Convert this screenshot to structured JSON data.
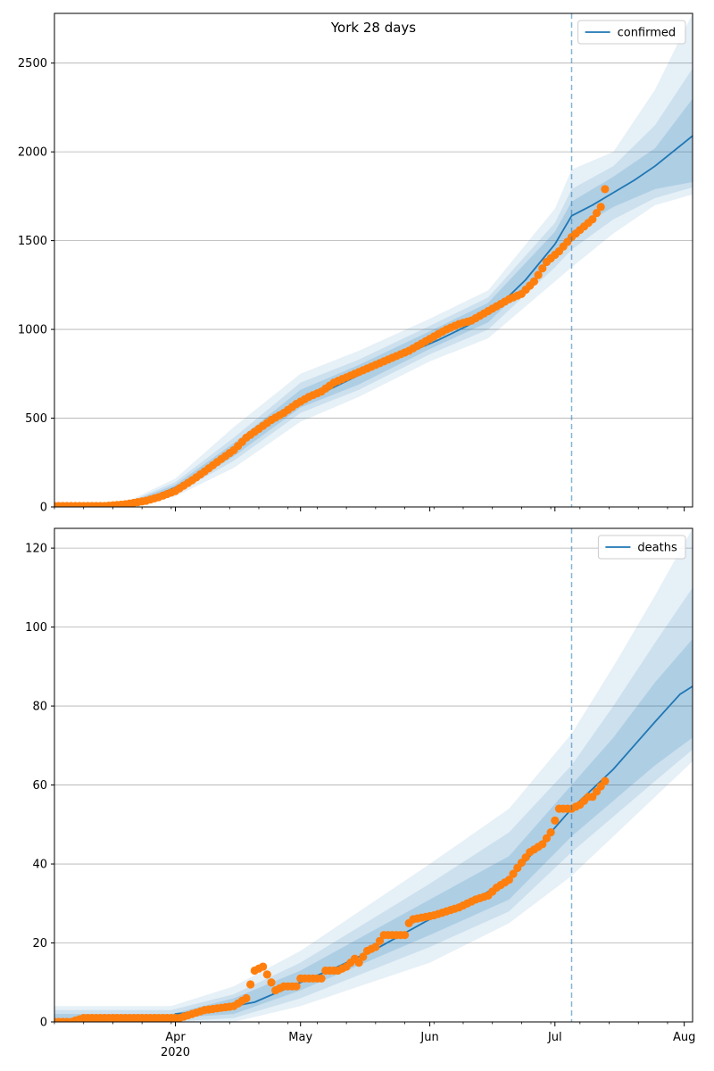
{
  "chart_data": [
    {
      "type": "line",
      "title": "York 28 days",
      "legend": {
        "entries": [
          "confirmed"
        ],
        "placement": "top-right"
      },
      "xlabel": "",
      "ylabel": "",
      "grid": "horizontal",
      "xlim": [
        "2020-03-03",
        "2020-08-03"
      ],
      "ylim": [
        0,
        2780
      ],
      "yticks": [
        0,
        500,
        1000,
        1500,
        2000,
        2500
      ],
      "xticks": [
        {
          "date": "2020-04-01",
          "label": "Apr",
          "sublabel": "2020"
        },
        {
          "date": "2020-05-01",
          "label": "May",
          "sublabel": ""
        },
        {
          "date": "2020-06-01",
          "label": "Jun",
          "sublabel": ""
        },
        {
          "date": "2020-07-01",
          "label": "Jul",
          "sublabel": ""
        },
        {
          "date": "2020-08-01",
          "label": "Aug",
          "sublabel": ""
        }
      ],
      "forecast_start": "2020-07-05",
      "colors": {
        "model": "#1f77b4",
        "observed": "#ff7f0e",
        "band": "#1f77b4"
      },
      "series": [
        {
          "name": "confirmed",
          "kind": "model-median",
          "points": [
            [
              "2020-03-03",
              5
            ],
            [
              "2020-03-20",
              15
            ],
            [
              "2020-03-27",
              60
            ],
            [
              "2020-04-01",
              110
            ],
            [
              "2020-04-08",
              200
            ],
            [
              "2020-04-15",
              320
            ],
            [
              "2020-04-22",
              450
            ],
            [
              "2020-04-29",
              560
            ],
            [
              "2020-05-06",
              640
            ],
            [
              "2020-05-13",
              720
            ],
            [
              "2020-05-20",
              800
            ],
            [
              "2020-05-27",
              870
            ],
            [
              "2020-06-03",
              940
            ],
            [
              "2020-06-10",
              1020
            ],
            [
              "2020-06-17",
              1120
            ],
            [
              "2020-06-24",
              1280
            ],
            [
              "2020-07-01",
              1480
            ],
            [
              "2020-07-05",
              1640
            ],
            [
              "2020-07-10",
              1700
            ],
            [
              "2020-07-15",
              1770
            ],
            [
              "2020-07-20",
              1840
            ],
            [
              "2020-07-25",
              1920
            ],
            [
              "2020-08-03",
              2090
            ]
          ]
        },
        {
          "kind": "observed",
          "points": [
            [
              "2020-03-03",
              5
            ],
            [
              "2020-03-15",
              5
            ],
            [
              "2020-03-20",
              15
            ],
            [
              "2020-03-25",
              35
            ],
            [
              "2020-03-28",
              55
            ],
            [
              "2020-04-01",
              90
            ],
            [
              "2020-04-05",
              150
            ],
            [
              "2020-04-08",
              200
            ],
            [
              "2020-04-12",
              270
            ],
            [
              "2020-04-15",
              320
            ],
            [
              "2020-04-18",
              390
            ],
            [
              "2020-04-21",
              440
            ],
            [
              "2020-04-24",
              490
            ],
            [
              "2020-04-27",
              530
            ],
            [
              "2020-04-30",
              580
            ],
            [
              "2020-05-03",
              620
            ],
            [
              "2020-05-06",
              650
            ],
            [
              "2020-05-09",
              700
            ],
            [
              "2020-05-12",
              730
            ],
            [
              "2020-05-15",
              760
            ],
            [
              "2020-05-18",
              790
            ],
            [
              "2020-05-21",
              820
            ],
            [
              "2020-05-24",
              850
            ],
            [
              "2020-05-27",
              880
            ],
            [
              "2020-05-30",
              920
            ],
            [
              "2020-06-02",
              960
            ],
            [
              "2020-06-05",
              1000
            ],
            [
              "2020-06-08",
              1030
            ],
            [
              "2020-06-11",
              1050
            ],
            [
              "2020-06-14",
              1090
            ],
            [
              "2020-06-17",
              1130
            ],
            [
              "2020-06-20",
              1170
            ],
            [
              "2020-06-23",
              1200
            ],
            [
              "2020-06-26",
              1270
            ],
            [
              "2020-06-29",
              1380
            ],
            [
              "2020-07-02",
              1440
            ],
            [
              "2020-07-05",
              1520
            ],
            [
              "2020-07-08",
              1580
            ],
            [
              "2020-07-10",
              1620
            ],
            [
              "2020-07-12",
              1690
            ],
            [
              "2020-07-13",
              1790
            ]
          ]
        }
      ],
      "bands": [
        {
          "level": "outer",
          "points": [
            [
              "2020-03-03",
              0,
              10
            ],
            [
              "2020-03-20",
              5,
              25
            ],
            [
              "2020-04-01",
              60,
              160
            ],
            [
              "2020-04-15",
              220,
              450
            ],
            [
              "2020-05-01",
              480,
              750
            ],
            [
              "2020-05-15",
              620,
              880
            ],
            [
              "2020-06-01",
              820,
              1060
            ],
            [
              "2020-06-15",
              950,
              1220
            ],
            [
              "2020-07-01",
              1270,
              1680
            ],
            [
              "2020-07-05",
              1350,
              1900
            ],
            [
              "2020-07-15",
              1540,
              2000
            ],
            [
              "2020-07-25",
              1700,
              2350
            ],
            [
              "2020-08-03",
              1760,
              2780
            ]
          ]
        },
        {
          "level": "middle",
          "points": [
            [
              "2020-03-03",
              2,
              8
            ],
            [
              "2020-03-20",
              8,
              20
            ],
            [
              "2020-04-01",
              75,
              140
            ],
            [
              "2020-04-15",
              260,
              390
            ],
            [
              "2020-05-01",
              530,
              700
            ],
            [
              "2020-05-15",
              660,
              830
            ],
            [
              "2020-06-01",
              860,
              1020
            ],
            [
              "2020-06-15",
              1000,
              1180
            ],
            [
              "2020-07-01",
              1350,
              1600
            ],
            [
              "2020-07-05",
              1450,
              1790
            ],
            [
              "2020-07-15",
              1620,
              1920
            ],
            [
              "2020-07-25",
              1740,
              2150
            ],
            [
              "2020-08-03",
              1800,
              2470
            ]
          ]
        },
        {
          "level": "inner",
          "points": [
            [
              "2020-03-03",
              3,
              7
            ],
            [
              "2020-03-20",
              10,
              18
            ],
            [
              "2020-04-01",
              85,
              125
            ],
            [
              "2020-04-15",
              285,
              360
            ],
            [
              "2020-05-01",
              560,
              660
            ],
            [
              "2020-05-15",
              690,
              800
            ],
            [
              "2020-06-01",
              890,
              990
            ],
            [
              "2020-06-15",
              1040,
              1150
            ],
            [
              "2020-07-01",
              1400,
              1550
            ],
            [
              "2020-07-05",
              1550,
              1720
            ],
            [
              "2020-07-15",
              1690,
              1860
            ],
            [
              "2020-07-25",
              1790,
              2020
            ],
            [
              "2020-08-03",
              1830,
              2300
            ]
          ]
        }
      ]
    },
    {
      "type": "line",
      "title": "",
      "legend": {
        "entries": [
          "deaths"
        ],
        "placement": "top-right"
      },
      "xlabel": "",
      "ylabel": "",
      "grid": "horizontal",
      "xlim": [
        "2020-03-03",
        "2020-08-03"
      ],
      "ylim": [
        0,
        125
      ],
      "yticks": [
        0,
        20,
        40,
        60,
        80,
        100,
        120
      ],
      "xticks": [
        {
          "date": "2020-04-01",
          "label": "Apr",
          "sublabel": "2020"
        },
        {
          "date": "2020-05-01",
          "label": "May",
          "sublabel": ""
        },
        {
          "date": "2020-06-01",
          "label": "Jun",
          "sublabel": ""
        },
        {
          "date": "2020-07-01",
          "label": "Jul",
          "sublabel": ""
        },
        {
          "date": "2020-08-01",
          "label": "Aug",
          "sublabel": ""
        }
      ],
      "forecast_start": "2020-07-05",
      "colors": {
        "model": "#1f77b4",
        "observed": "#ff7f0e",
        "band": "#1f77b4"
      },
      "series": [
        {
          "name": "deaths",
          "kind": "model-median",
          "points": [
            [
              "2020-03-03",
              0
            ],
            [
              "2020-03-10",
              1
            ],
            [
              "2020-03-31",
              1
            ],
            [
              "2020-04-01",
              2
            ],
            [
              "2020-04-10",
              3
            ],
            [
              "2020-04-20",
              5
            ],
            [
              "2020-05-01",
              10
            ],
            [
              "2020-05-10",
              14
            ],
            [
              "2020-05-20",
              19
            ],
            [
              "2020-06-01",
              26
            ],
            [
              "2020-06-10",
              30
            ],
            [
              "2020-06-20",
              36
            ],
            [
              "2020-06-30",
              48
            ],
            [
              "2020-07-05",
              54
            ],
            [
              "2020-07-10",
              59
            ],
            [
              "2020-07-15",
              64
            ],
            [
              "2020-07-20",
              70
            ],
            [
              "2020-07-25",
              76
            ],
            [
              "2020-07-31",
              83
            ],
            [
              "2020-08-03",
              85
            ]
          ]
        },
        {
          "kind": "observed",
          "points": [
            [
              "2020-03-03",
              0
            ],
            [
              "2020-03-07",
              0
            ],
            [
              "2020-03-10",
              1
            ],
            [
              "2020-03-31",
              1
            ],
            [
              "2020-04-02",
              1
            ],
            [
              "2020-04-05",
              2
            ],
            [
              "2020-04-08",
              3
            ],
            [
              "2020-04-15",
              4
            ],
            [
              "2020-04-18",
              6
            ],
            [
              "2020-04-20",
              13
            ],
            [
              "2020-04-22",
              14
            ],
            [
              "2020-04-25",
              8
            ],
            [
              "2020-04-27",
              9
            ],
            [
              "2020-04-30",
              9
            ],
            [
              "2020-05-01",
              11
            ],
            [
              "2020-05-06",
              11
            ],
            [
              "2020-05-07",
              13
            ],
            [
              "2020-05-10",
              13
            ],
            [
              "2020-05-12",
              14
            ],
            [
              "2020-05-14",
              16
            ],
            [
              "2020-05-15",
              15
            ],
            [
              "2020-05-17",
              18
            ],
            [
              "2020-05-19",
              19
            ],
            [
              "2020-05-21",
              22
            ],
            [
              "2020-05-26",
              22
            ],
            [
              "2020-05-27",
              25
            ],
            [
              "2020-05-28",
              26
            ],
            [
              "2020-06-02",
              27
            ],
            [
              "2020-06-05",
              28
            ],
            [
              "2020-06-08",
              29
            ],
            [
              "2020-06-12",
              31
            ],
            [
              "2020-06-15",
              32
            ],
            [
              "2020-06-17",
              34
            ],
            [
              "2020-06-20",
              36
            ],
            [
              "2020-06-22",
              39
            ],
            [
              "2020-06-25",
              43
            ],
            [
              "2020-06-28",
              45
            ],
            [
              "2020-06-30",
              48
            ],
            [
              "2020-07-01",
              51
            ],
            [
              "2020-07-02",
              54
            ],
            [
              "2020-07-05",
              54
            ],
            [
              "2020-07-07",
              55
            ],
            [
              "2020-07-09",
              57
            ],
            [
              "2020-07-10",
              57
            ],
            [
              "2020-07-13",
              61
            ]
          ]
        }
      ],
      "bands": [
        {
          "level": "outer",
          "points": [
            [
              "2020-03-03",
              0,
              4
            ],
            [
              "2020-03-31",
              0,
              4
            ],
            [
              "2020-04-15",
              0,
              9
            ],
            [
              "2020-05-01",
              4,
              18
            ],
            [
              "2020-06-01",
              15,
              40
            ],
            [
              "2020-06-20",
              25,
              54
            ],
            [
              "2020-07-05",
              37,
              73
            ],
            [
              "2020-07-15",
              47,
              90
            ],
            [
              "2020-07-25",
              57,
              108
            ],
            [
              "2020-08-03",
              66,
              125
            ]
          ]
        },
        {
          "level": "middle",
          "points": [
            [
              "2020-03-03",
              0,
              3
            ],
            [
              "2020-03-31",
              0,
              3
            ],
            [
              "2020-04-15",
              1,
              7
            ],
            [
              "2020-05-01",
              6,
              15
            ],
            [
              "2020-06-01",
              19,
              35
            ],
            [
              "2020-06-20",
              28,
              48
            ],
            [
              "2020-07-05",
              43,
              65
            ],
            [
              "2020-07-15",
              52,
              80
            ],
            [
              "2020-07-25",
              61,
              96
            ],
            [
              "2020-08-03",
              69,
              110
            ]
          ]
        },
        {
          "level": "inner",
          "points": [
            [
              "2020-03-03",
              0,
              2
            ],
            [
              "2020-03-31",
              1,
              2
            ],
            [
              "2020-04-15",
              2,
              6
            ],
            [
              "2020-05-01",
              8,
              13
            ],
            [
              "2020-06-01",
              22,
              31
            ],
            [
              "2020-06-20",
              31,
              42
            ],
            [
              "2020-07-05",
              47,
              60
            ],
            [
              "2020-07-15",
              56,
              72
            ],
            [
              "2020-07-25",
              65,
              86
            ],
            [
              "2020-08-03",
              72,
              97
            ]
          ]
        }
      ]
    }
  ]
}
